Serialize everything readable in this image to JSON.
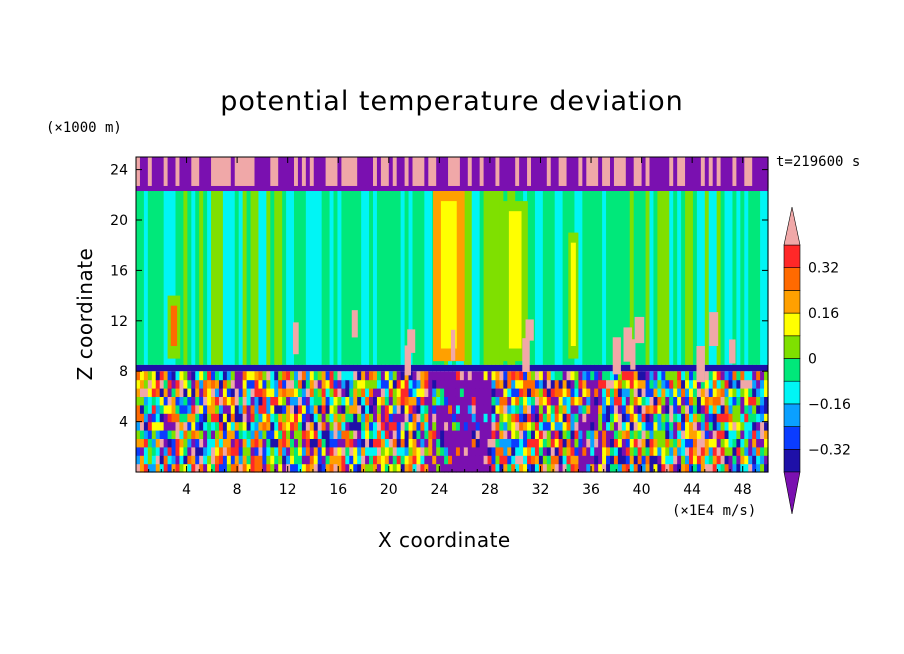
{
  "chart_data": {
    "type": "heatmap",
    "title": "potential temperature deviation",
    "xlabel": "X coordinate",
    "ylabel": "Z coordinate",
    "x_unit": "(×1E4 m/s)",
    "y_unit": "(×1000 m)",
    "time_label": "t=219600 s",
    "xlim": [
      0,
      50
    ],
    "ylim": [
      0,
      25
    ],
    "x_ticks": [
      "4",
      "8",
      "12",
      "16",
      "20",
      "24",
      "28",
      "32",
      "36",
      "40",
      "44",
      "48"
    ],
    "y_ticks": [
      "4",
      "8",
      "12",
      "16",
      "20",
      "24"
    ],
    "colorbar": {
      "labels": [
        "0.32",
        "0.16",
        "0",
        "−0.16",
        "−0.32"
      ],
      "levels": [
        -0.4,
        -0.32,
        -0.24,
        -0.16,
        -0.08,
        0,
        0.08,
        0.16,
        0.24,
        0.32,
        0.4
      ],
      "colors": [
        "#7a10b0",
        "#1e10a8",
        "#0a3cff",
        "#0aa0ff",
        "#00f5f5",
        "#00e87a",
        "#7fe000",
        "#ffff00",
        "#ffa000",
        "#ff6a00",
        "#ff2828",
        "#f0a8a8"
      ],
      "extend": "both"
    },
    "regions": [
      {
        "band": "z 22.5–25",
        "description": "mixed purple and pink"
      },
      {
        "band": "z 8.5–22.5",
        "description": "mostly green and cyan, warm columns near x 24–26 and x 29–31"
      },
      {
        "band": "z 8–8.5",
        "description": "dark blue/purple layer"
      },
      {
        "band": "z 0–8",
        "description": "turbulent mix of all colors"
      }
    ]
  }
}
